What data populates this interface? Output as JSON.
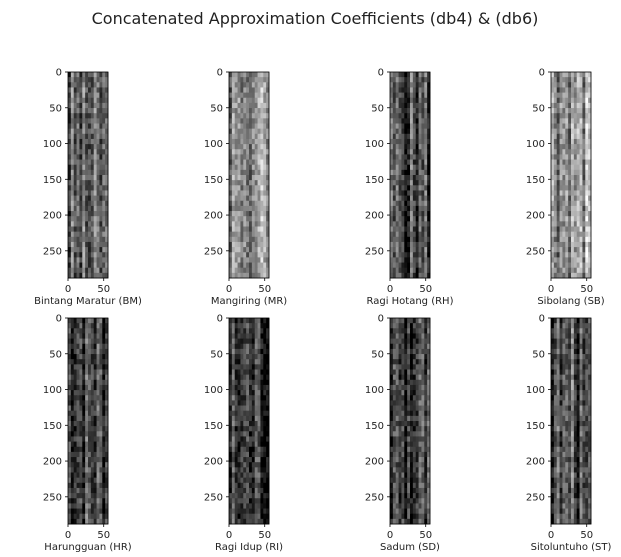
{
  "title": "Concatenated Approximation Coefficients (db4) & (db6)",
  "chart_data": {
    "type": "heatmap",
    "colormap": "gray",
    "rows": 2,
    "cols": 4,
    "panels": [
      {
        "label": "Bintang Maratur (BM)",
        "xticks": [
          0,
          50
        ],
        "yticks": [
          0,
          50,
          100,
          150,
          200,
          250
        ],
        "xlim": [
          0,
          56
        ],
        "ylim": [
          288,
          0
        ],
        "brightness": 0.35
      },
      {
        "label": "Mangiring (MR)",
        "xticks": [
          0,
          50
        ],
        "yticks": [
          0,
          50,
          100,
          150,
          200,
          250
        ],
        "xlim": [
          0,
          56
        ],
        "ylim": [
          288,
          0
        ],
        "brightness": 0.55
      },
      {
        "label": "Ragi Hotang (RH)",
        "xticks": [
          0,
          50
        ],
        "yticks": [
          0,
          50,
          100,
          150,
          200,
          250
        ],
        "xlim": [
          0,
          56
        ],
        "ylim": [
          288,
          0
        ],
        "brightness": 0.3
      },
      {
        "label": "Sibolang (SB)",
        "xticks": [
          0,
          50
        ],
        "yticks": [
          0,
          50,
          100,
          150,
          200,
          250
        ],
        "xlim": [
          0,
          56
        ],
        "ylim": [
          288,
          0
        ],
        "brightness": 0.6
      },
      {
        "label": "Harungguan (HR)",
        "xticks": [
          0,
          50
        ],
        "yticks": [
          0,
          50,
          100,
          150,
          200,
          250
        ],
        "xlim": [
          0,
          56
        ],
        "ylim": [
          288,
          0
        ],
        "brightness": 0.3
      },
      {
        "label": "Ragi Idup (RI)",
        "xticks": [
          0,
          50
        ],
        "yticks": [
          0,
          50,
          100,
          150,
          200,
          250
        ],
        "xlim": [
          0,
          56
        ],
        "ylim": [
          288,
          0
        ],
        "brightness": 0.2
      },
      {
        "label": "Sadum (SD)",
        "xticks": [
          0,
          50
        ],
        "yticks": [
          0,
          50,
          100,
          150,
          200,
          250
        ],
        "xlim": [
          0,
          56
        ],
        "ylim": [
          288,
          0
        ],
        "brightness": 0.25
      },
      {
        "label": "Sitoluntuho (ST)",
        "xticks": [
          0,
          50
        ],
        "yticks": [
          0,
          50,
          100,
          150,
          200,
          250
        ],
        "xlim": [
          0,
          56
        ],
        "ylim": [
          288,
          0
        ],
        "brightness": 0.3
      }
    ]
  }
}
